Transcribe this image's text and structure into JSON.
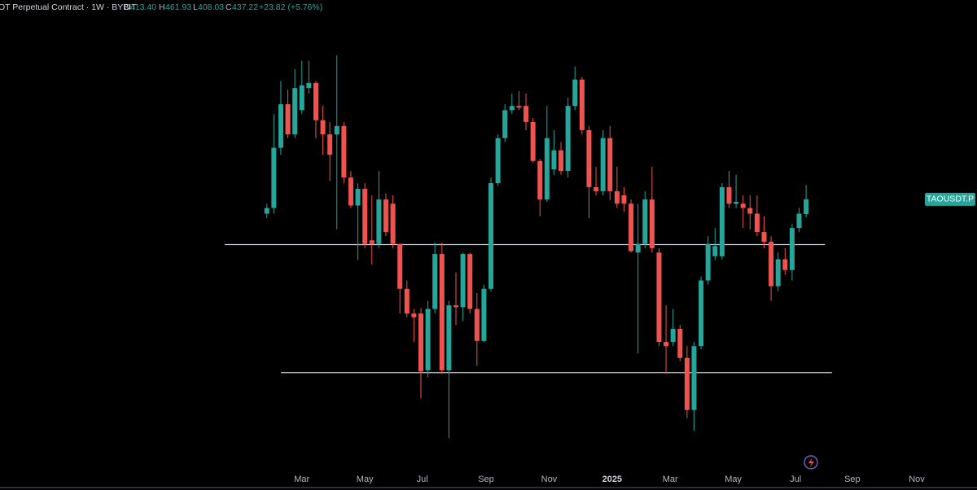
{
  "chart_data": {
    "type": "candlestick",
    "title": "OT Perpetual Contract · 1W · BYBIT",
    "ohlc_letters": [
      "O",
      "H",
      "L",
      "C"
    ],
    "header_values": [
      "413.40",
      "461.93",
      "408.03",
      "437.22"
    ],
    "change_label": "+23.82 (+5.76%)",
    "price_tag": "TAOUSDT.P",
    "log_scale": true,
    "up_color": "#26a69a",
    "down_color": "#ef5350",
    "ylim": [
      150,
      900
    ],
    "xlim": [
      -38.1,
      101.4
    ],
    "xticks": [
      {
        "value": 5.0,
        "label": "Mar"
      },
      {
        "value": 14.0,
        "label": "May"
      },
      {
        "value": 22.2,
        "label": "Jul"
      },
      {
        "value": 31.3,
        "label": "Sep"
      },
      {
        "value": 40.3,
        "label": "Nov"
      },
      {
        "value": 49.3,
        "label": "2025"
      },
      {
        "value": 57.6,
        "label": "Mar"
      },
      {
        "value": 66.6,
        "label": "May"
      },
      {
        "value": 75.5,
        "label": "Jul"
      },
      {
        "value": 83.6,
        "label": "Sep"
      },
      {
        "value": 92.8,
        "label": "Nov"
      }
    ],
    "hlines": [
      {
        "value": 368,
        "from": -6.0,
        "to": 79.7,
        "color": "#d1d4dc"
      },
      {
        "value": 226,
        "from": 2.0,
        "to": 80.7,
        "color": "#d1d4dc"
      }
    ],
    "candles": {
      "open": [
        414,
        423,
        532,
        628,
        560,
        614,
        668,
        681,
        591,
        560,
        560,
        578,
        475,
        427,
        455,
        374,
        369,
        437,
        430,
        369,
        311,
        283,
        283,
        228,
        288,
        355,
        228,
        292,
        290,
        355,
        288,
        255,
        311,
        465,
        552,
        614,
        624,
        624,
        587,
        506,
        437,
        490,
        527,
        487,
        624,
        690,
        569,
        458,
        451,
        552,
        451,
        444,
        430,
        357,
        369,
        437,
        357,
        254,
        254,
        267,
        239,
        196,
        250,
        321,
        352,
        352,
        458,
        430,
        430,
        423,
        414,
        386,
        372,
        314,
        348,
        334,
        392,
        413.4
      ],
      "high": [
        430,
        605,
        686,
        664,
        718,
        741,
        741,
        686,
        624,
        587,
        757,
        587,
        487,
        465,
        465,
        444,
        487,
        447,
        444,
        369,
        321,
        288,
        289,
        297,
        371,
        371,
        297,
        331,
        357,
        357,
        306,
        316,
        475,
        560,
        628,
        654,
        660,
        654,
        596,
        510,
        624,
        569,
        544,
        644,
        725,
        696,
        578,
        495,
        569,
        578,
        495,
        458,
        437,
        430,
        451,
        495,
        363,
        292,
        288,
        271,
        250,
        254,
        326,
        380,
        392,
        465,
        487,
        480,
        444,
        444,
        444,
        410,
        380,
        357,
        363,
        398,
        423,
        461.93
      ],
      "low": [
        407,
        414,
        518,
        552,
        552,
        605,
        654,
        552,
        518,
        469,
        390,
        465,
        423,
        347,
        363,
        341,
        363,
        380,
        363,
        283,
        279,
        254,
        205,
        222,
        283,
        225,
        176,
        271,
        275,
        283,
        232,
        254,
        308,
        460,
        544,
        605,
        614,
        569,
        503,
        410,
        433,
        480,
        480,
        475,
        614,
        560,
        407,
        444,
        444,
        436,
        423,
        417,
        357,
        243,
        363,
        357,
        250,
        225,
        250,
        236,
        190,
        181,
        247,
        316,
        347,
        348,
        423,
        423,
        392,
        390,
        380,
        363,
        297,
        308,
        328,
        321,
        386,
        408.03
      ],
      "close": [
        423,
        532,
        628,
        560,
        668,
        675,
        681,
        591,
        560,
        518,
        578,
        475,
        427,
        455,
        369,
        369,
        437,
        386,
        369,
        311,
        283,
        279,
        227,
        288,
        355,
        228,
        292,
        290,
        355,
        288,
        255,
        311,
        465,
        552,
        614,
        624,
        620,
        587,
        506,
        437,
        552,
        527,
        487,
        624,
        690,
        569,
        458,
        451,
        552,
        451,
        430,
        430,
        359,
        369,
        437,
        363,
        254,
        250,
        267,
        239,
        196,
        250,
        321,
        369,
        366,
        458,
        430,
        433,
        423,
        414,
        386,
        372,
        314,
        348,
        334,
        392,
        414,
        437.22
      ]
    }
  }
}
